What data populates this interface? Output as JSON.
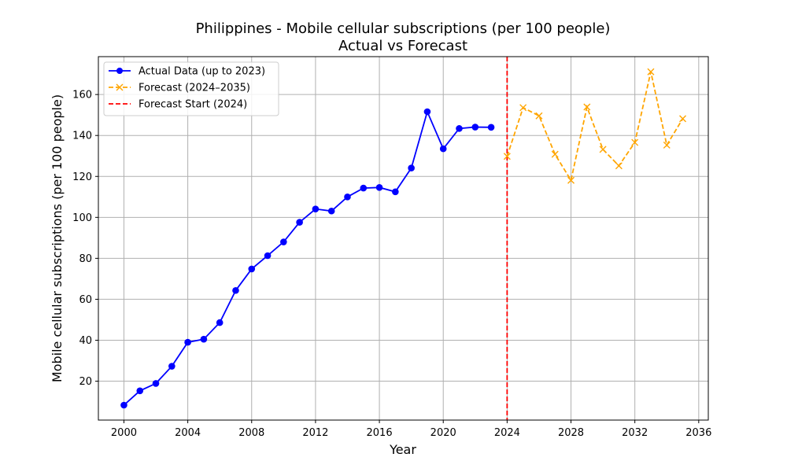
{
  "chart_data": {
    "type": "line",
    "title": "Philippines - Mobile cellular subscriptions (per 100 people)",
    "subtitle": "Actual vs Forecast",
    "xlabel": "Year",
    "ylabel": "Mobile cellular subscriptions (per 100 people)",
    "xlim": [
      1998.4,
      2036.6
    ],
    "ylim": [
      1.0,
      178.5
    ],
    "x_ticks": [
      2000,
      2004,
      2008,
      2012,
      2016,
      2020,
      2024,
      2028,
      2032,
      2036
    ],
    "y_ticks": [
      20,
      40,
      60,
      80,
      100,
      120,
      140,
      160
    ],
    "grid": true,
    "legend_position": "top-left",
    "series": [
      {
        "name": "Actual Data (up to 2023)",
        "color": "#0000ff",
        "line_style": "solid",
        "marker": "circle",
        "x": [
          2000,
          2001,
          2002,
          2003,
          2004,
          2005,
          2006,
          2007,
          2008,
          2009,
          2010,
          2011,
          2012,
          2013,
          2014,
          2015,
          2016,
          2017,
          2018,
          2019,
          2020,
          2021,
          2022,
          2023
        ],
        "values": [
          8.3,
          15.3,
          18.9,
          27.3,
          39.0,
          40.5,
          48.6,
          64.3,
          74.8,
          81.3,
          88.0,
          97.6,
          104.1,
          103.1,
          110.0,
          114.3,
          114.6,
          112.5,
          124.1,
          151.6,
          133.5,
          143.4,
          144.1,
          144.0
        ]
      },
      {
        "name": "Forecast (2024–2035)",
        "color": "#ffa500",
        "line_style": "dashed",
        "marker": "x",
        "x": [
          2024,
          2025,
          2026,
          2027,
          2028,
          2029,
          2030,
          2031,
          2032,
          2033,
          2034,
          2035
        ],
        "values": [
          129.8,
          153.6,
          149.6,
          130.8,
          118.1,
          153.9,
          133.2,
          125.2,
          136.6,
          171.1,
          135.3,
          148.2
        ]
      }
    ],
    "reference_line": {
      "name": "Forecast Start (2024)",
      "color": "#ff0000",
      "line_style": "dashed",
      "x": 2024
    }
  }
}
